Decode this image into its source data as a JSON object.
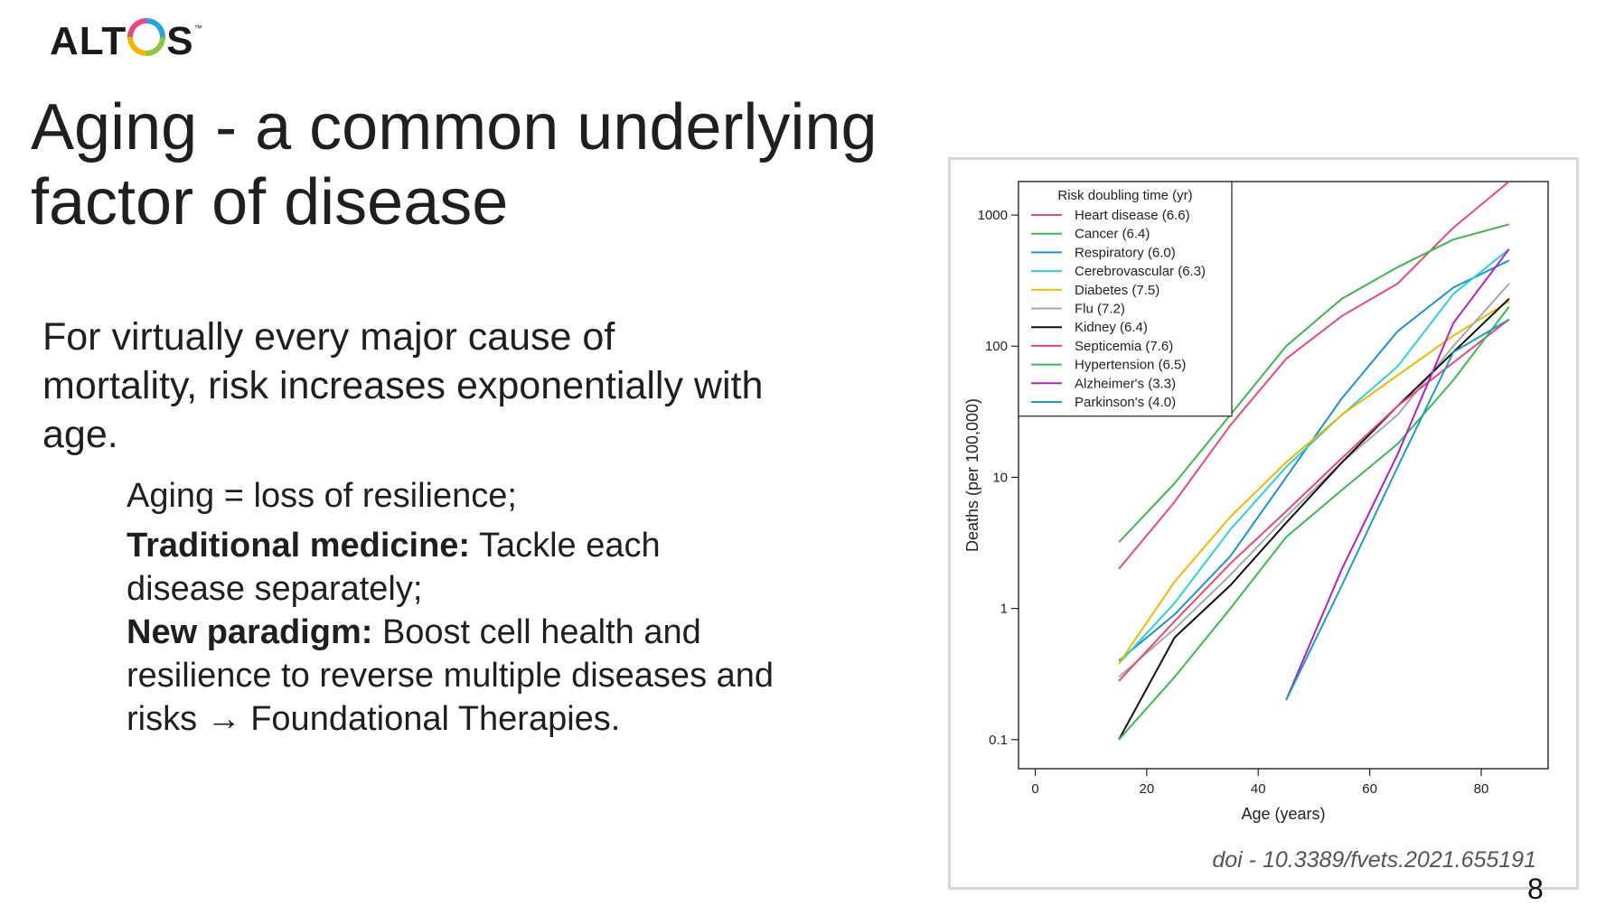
{
  "logo": {
    "text_pre": "ALT",
    "text_post": "S",
    "tm": "™"
  },
  "slide": {
    "title_line1": "Aging - a common underlying",
    "title_line2": "factor of disease",
    "lead": "For virtually every major cause of mortality, risk increases exponentially with age.",
    "bullet1": "Aging = loss of resilience;",
    "bullet2_bold": "Traditional medicine:",
    "bullet2_rest": " Tackle each disease separately;",
    "bullet3_bold": "New paradigm:",
    "bullet3_rest": " Boost cell health and resilience to reverse multiple diseases and risks → Foundational Therapies.",
    "doi": "doi - 10.3389/fvets.2021.655191",
    "page_number": "8"
  },
  "chart_data": {
    "type": "line",
    "xlabel": "Age (years)",
    "ylabel": "Deaths (per 100,000)",
    "y_scale": "log",
    "xlim": [
      -3,
      92
    ],
    "ylim": [
      0.06,
      1800
    ],
    "x_ticks": [
      0,
      20,
      40,
      60,
      80
    ],
    "y_ticks": [
      0.1,
      1,
      10,
      100,
      1000
    ],
    "y_tick_labels": [
      "0.1",
      "1",
      "10",
      "100",
      "1000"
    ],
    "legend_title": "Risk doubling time (yr)",
    "legend_position": "top-left",
    "series": [
      {
        "name": "Heart disease (6.6)",
        "color": "#e8487a",
        "x": [
          15,
          25,
          35,
          45,
          55,
          65,
          75,
          85
        ],
        "y": [
          2.0,
          6.5,
          25,
          80,
          170,
          300,
          800,
          1800
        ]
      },
      {
        "name": "Cancer (6.4)",
        "color": "#3db84a",
        "x": [
          15,
          25,
          35,
          45,
          55,
          65,
          75,
          85
        ],
        "y": [
          3.2,
          9,
          30,
          100,
          230,
          400,
          650,
          850
        ]
      },
      {
        "name": "Respiratory (6.0)",
        "color": "#1e8fd8",
        "x": [
          15,
          25,
          35,
          45,
          55,
          65,
          75,
          85
        ],
        "y": [
          0.4,
          0.9,
          2.5,
          10,
          40,
          130,
          280,
          450
        ]
      },
      {
        "name": "Cerebrovascular (6.3)",
        "color": "#2ed0d8",
        "x": [
          15,
          25,
          35,
          45,
          55,
          65,
          75,
          85
        ],
        "y": [
          0.38,
          1.1,
          4.0,
          12,
          30,
          70,
          250,
          550
        ]
      },
      {
        "name": "Diabetes (7.5)",
        "color": "#f2b705",
        "x": [
          15,
          25,
          35,
          45,
          55,
          65,
          75,
          85
        ],
        "y": [
          0.38,
          1.6,
          5.0,
          13,
          30,
          60,
          120,
          220
        ]
      },
      {
        "name": "Flu (7.2)",
        "color": "#a8a8a8",
        "x": [
          15,
          25,
          35,
          45,
          55,
          65,
          75,
          85
        ],
        "y": [
          0.3,
          0.7,
          1.8,
          5.0,
          13,
          30,
          100,
          300
        ]
      },
      {
        "name": "Kidney (6.4)",
        "color": "#111111",
        "x": [
          15,
          25,
          35,
          45,
          55,
          65,
          75,
          85
        ],
        "y": [
          0.1,
          0.6,
          1.5,
          4.5,
          13,
          35,
          90,
          230
        ]
      },
      {
        "name": "Septicemia (7.6)",
        "color": "#e8487a",
        "x": [
          15,
          25,
          35,
          45,
          55,
          65,
          75,
          85
        ],
        "y": [
          0.28,
          0.8,
          2.2,
          5.5,
          14,
          35,
          75,
          160
        ]
      },
      {
        "name": "Hypertension (6.5)",
        "color": "#3db84a",
        "x": [
          15,
          25,
          35,
          45,
          55,
          65,
          75,
          85
        ],
        "y": [
          0.1,
          0.3,
          1.0,
          3.5,
          8,
          18,
          55,
          200
        ]
      },
      {
        "name": "Alzheimer's (3.3)",
        "color": "#b022c8",
        "x": [
          45,
          55,
          65,
          75,
          85
        ],
        "y": [
          0.2,
          2.0,
          15,
          150,
          550
        ]
      },
      {
        "name": "Parkinson's (4.0)",
        "color": "#1e9ac8",
        "x": [
          45,
          55,
          65,
          75,
          85
        ],
        "y": [
          0.2,
          1.5,
          12,
          90,
          160
        ]
      }
    ]
  }
}
